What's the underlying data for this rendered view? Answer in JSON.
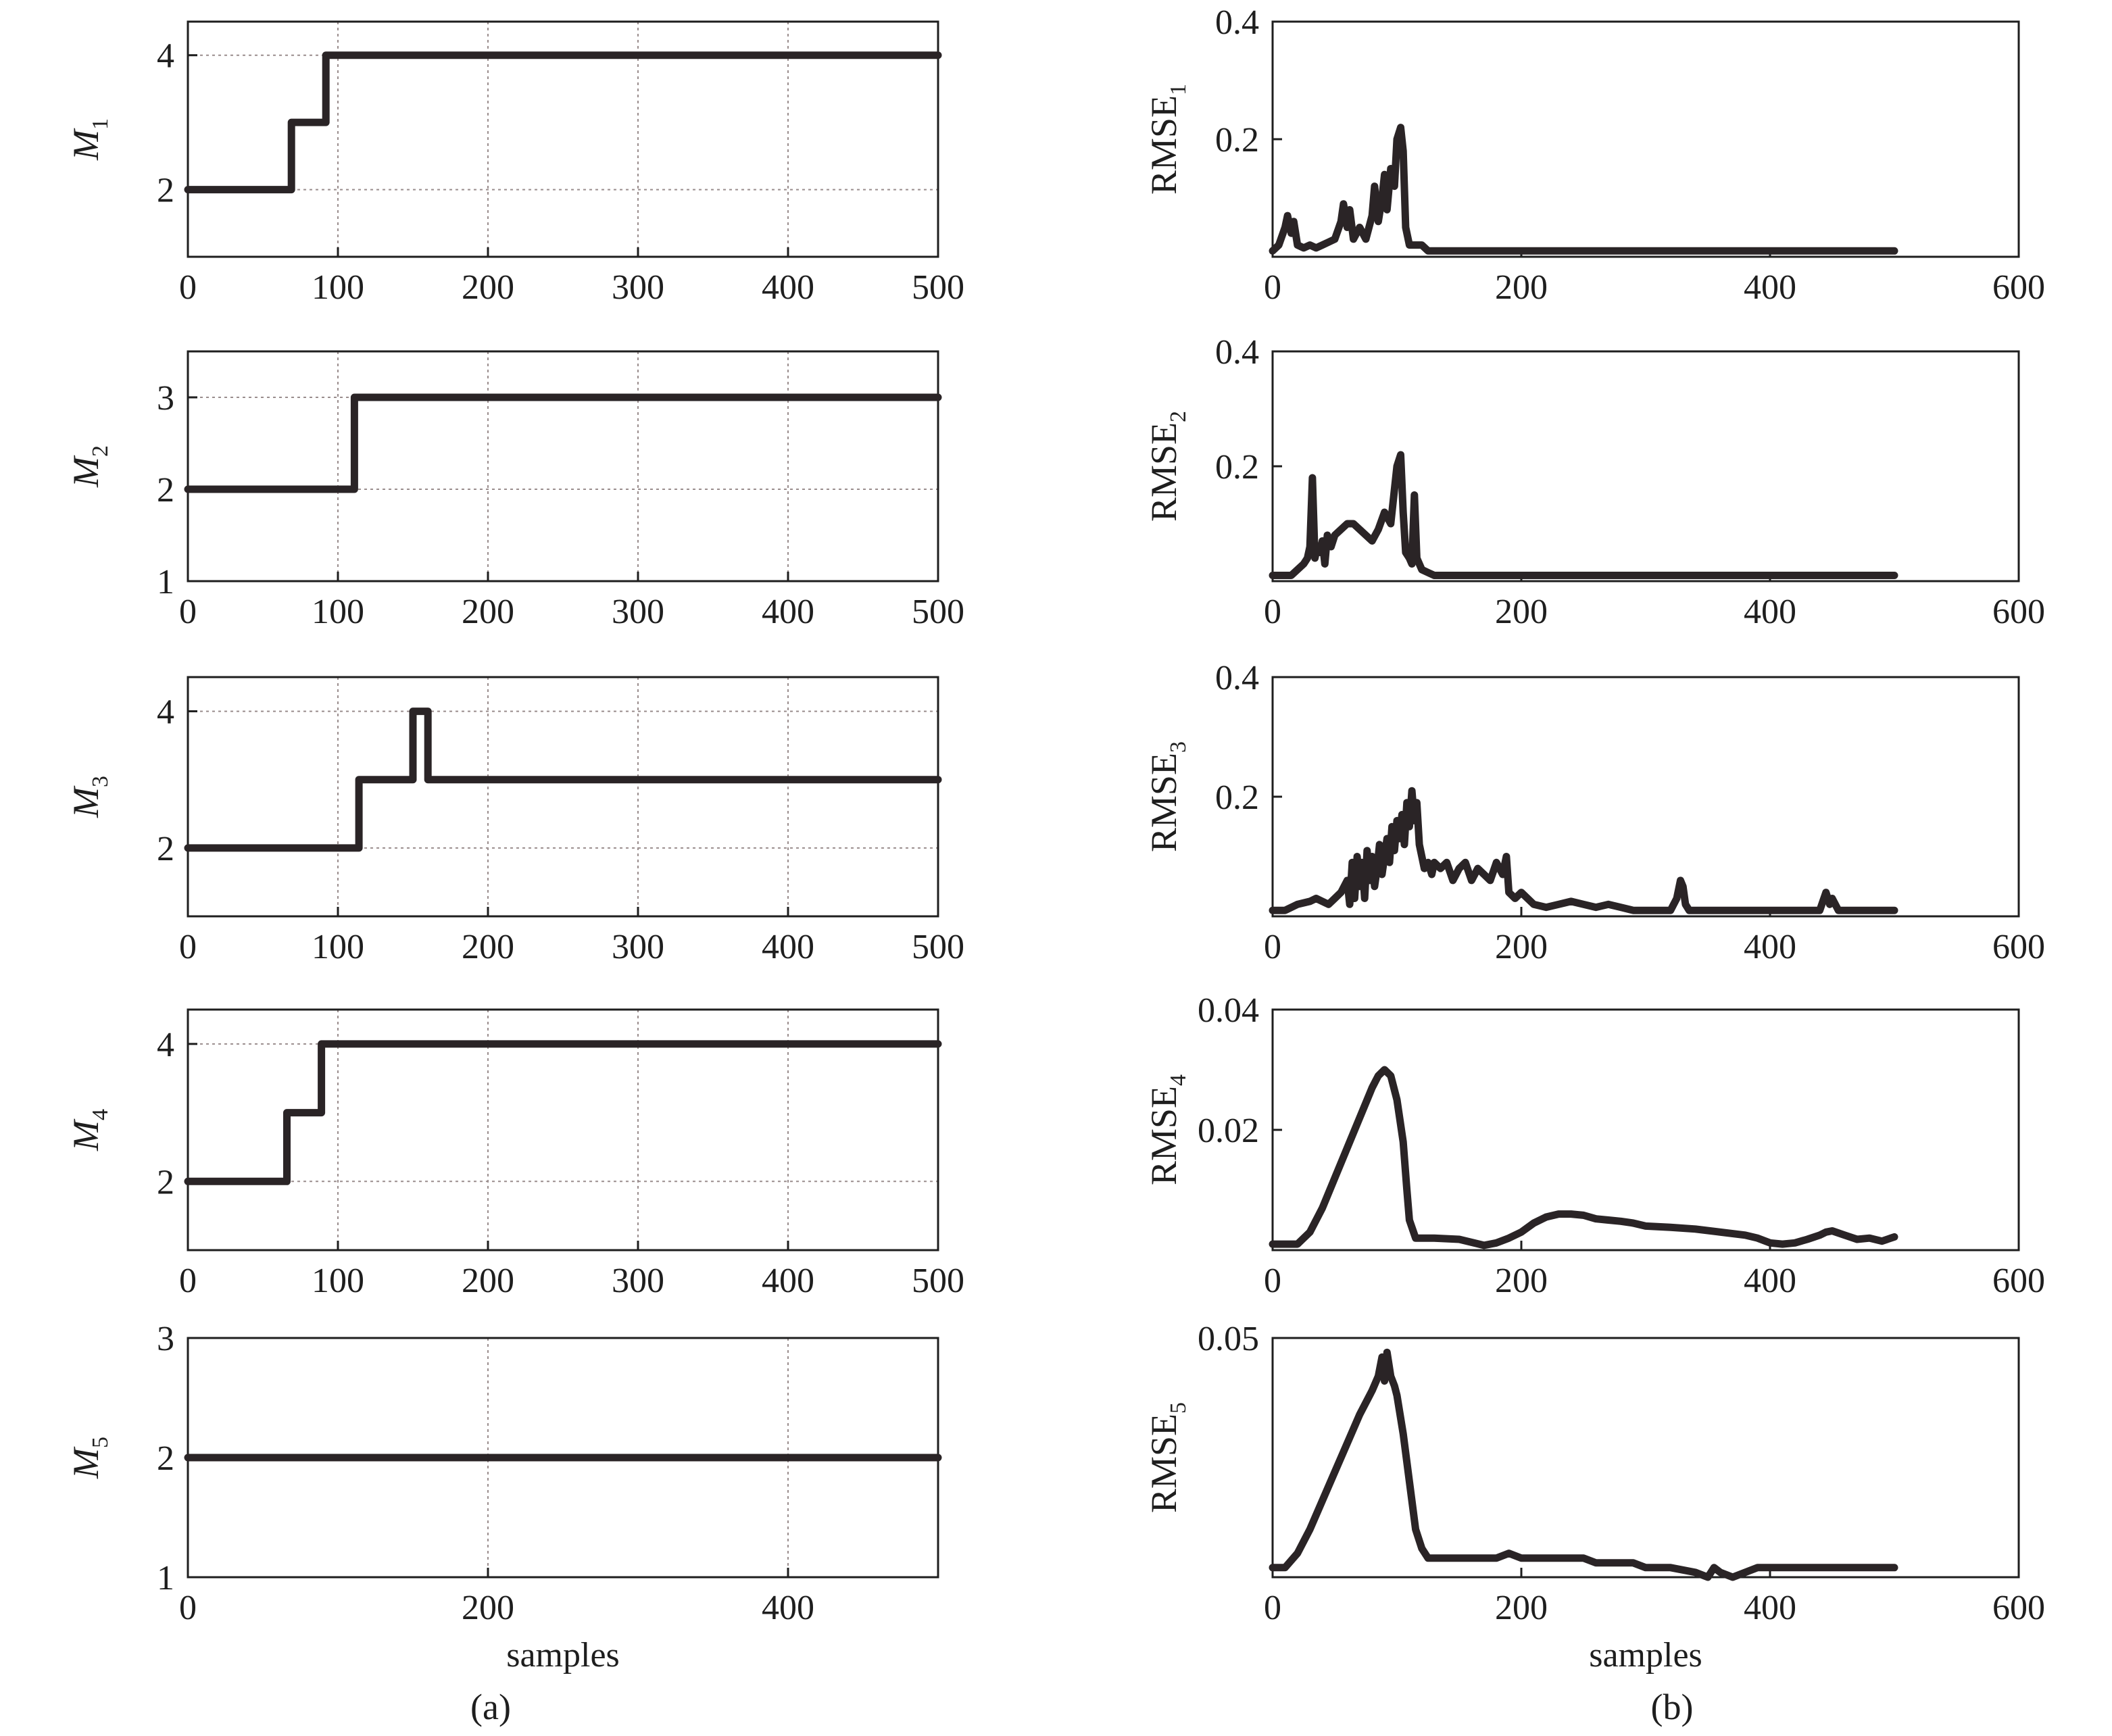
{
  "chart_data": [
    {
      "id": "M1",
      "type": "line",
      "panel": "(a)",
      "ylabel": {
        "base": "M",
        "sub": "1",
        "italic": true
      },
      "xlim": [
        0,
        500
      ],
      "ylim": [
        1,
        4.5
      ],
      "xticks": [
        0,
        100,
        200,
        300,
        400,
        500
      ],
      "yticks": [
        2,
        4
      ],
      "xgrid": [
        100,
        200,
        300,
        400
      ],
      "ygrid": [
        2,
        4
      ],
      "series": [
        {
          "x": [
            0,
            69,
            69,
            92,
            92,
            500
          ],
          "y": [
            2,
            2,
            3,
            3,
            4,
            4
          ]
        }
      ]
    },
    {
      "id": "M2",
      "type": "line",
      "panel": "(a)",
      "ylabel": {
        "base": "M",
        "sub": "2",
        "italic": true
      },
      "xlim": [
        0,
        500
      ],
      "ylim": [
        1,
        3.5
      ],
      "xticks": [
        0,
        100,
        200,
        300,
        400,
        500
      ],
      "yticks": [
        1,
        2,
        3
      ],
      "xgrid": [
        100,
        200,
        300,
        400
      ],
      "ygrid": [
        2,
        3
      ],
      "series": [
        {
          "x": [
            0,
            111,
            111,
            500
          ],
          "y": [
            2,
            2,
            3,
            3
          ]
        }
      ]
    },
    {
      "id": "M3",
      "type": "line",
      "panel": "(a)",
      "ylabel": {
        "base": "M",
        "sub": "3",
        "italic": true
      },
      "xlim": [
        0,
        500
      ],
      "ylim": [
        1,
        4.5
      ],
      "xticks": [
        0,
        100,
        200,
        300,
        400,
        500
      ],
      "yticks": [
        2,
        4
      ],
      "xgrid": [
        100,
        200,
        300,
        400
      ],
      "ygrid": [
        2,
        4
      ],
      "series": [
        {
          "x": [
            0,
            114,
            114,
            150,
            150,
            160,
            160,
            500
          ],
          "y": [
            2,
            2,
            3,
            3,
            4,
            4,
            3,
            3
          ]
        }
      ]
    },
    {
      "id": "M4",
      "type": "line",
      "panel": "(a)",
      "ylabel": {
        "base": "M",
        "sub": "4",
        "italic": true
      },
      "xlim": [
        0,
        500
      ],
      "ylim": [
        1,
        4.5
      ],
      "xticks": [
        0,
        100,
        200,
        300,
        400,
        500
      ],
      "yticks": [
        2,
        4
      ],
      "xgrid": [
        100,
        200,
        300,
        400
      ],
      "ygrid": [
        2,
        4
      ],
      "series": [
        {
          "x": [
            0,
            66,
            66,
            89,
            89,
            500
          ],
          "y": [
            2,
            2,
            3,
            3,
            4,
            4
          ]
        }
      ]
    },
    {
      "id": "M5",
      "type": "line",
      "panel": "(a)",
      "ylabel": {
        "base": "M",
        "sub": "5",
        "italic": true
      },
      "xlabel": "samples",
      "xlim": [
        0,
        500
      ],
      "ylim": [
        1,
        3
      ],
      "xticks": [
        0,
        200,
        400
      ],
      "yticks": [
        1,
        2,
        3
      ],
      "xgrid": [
        200,
        400
      ],
      "ygrid": [
        2
      ],
      "series": [
        {
          "x": [
            0,
            500
          ],
          "y": [
            2,
            2
          ]
        }
      ]
    },
    {
      "id": "RMSE1",
      "type": "line",
      "panel": "(b)",
      "ylabel": {
        "base": "RMSE",
        "sub": "1",
        "italic": false
      },
      "xlim": [
        0,
        600
      ],
      "ylim": [
        0,
        0.4
      ],
      "xticks": [
        0,
        200,
        400,
        600
      ],
      "yticks": [
        0.2,
        0.4
      ],
      "series": [
        {
          "x": [
            0,
            5,
            10,
            12,
            15,
            17,
            20,
            25,
            30,
            35,
            40,
            45,
            50,
            55,
            57,
            60,
            62,
            65,
            70,
            75,
            80,
            82,
            85,
            88,
            90,
            92,
            95,
            98,
            100,
            103,
            105,
            107,
            110,
            115,
            120,
            125,
            130,
            140,
            200,
            300,
            400,
            500
          ],
          "y": [
            0.01,
            0.02,
            0.05,
            0.07,
            0.04,
            0.06,
            0.02,
            0.015,
            0.02,
            0.015,
            0.02,
            0.025,
            0.03,
            0.06,
            0.09,
            0.05,
            0.08,
            0.03,
            0.05,
            0.03,
            0.07,
            0.12,
            0.06,
            0.1,
            0.14,
            0.08,
            0.15,
            0.12,
            0.2,
            0.22,
            0.18,
            0.05,
            0.02,
            0.02,
            0.02,
            0.01,
            0.01,
            0.01,
            0.01,
            0.01,
            0.01,
            0.01
          ]
        }
      ]
    },
    {
      "id": "RMSE2",
      "type": "line",
      "panel": "(b)",
      "ylabel": {
        "base": "RMSE",
        "sub": "2",
        "italic": false
      },
      "xlim": [
        0,
        600
      ],
      "ylim": [
        0,
        0.4
      ],
      "xticks": [
        0,
        200,
        400,
        600
      ],
      "yticks": [
        0.2,
        0.4
      ],
      "series": [
        {
          "x": [
            0,
            10,
            15,
            20,
            25,
            28,
            30,
            32,
            34,
            36,
            38,
            40,
            42,
            44,
            47,
            50,
            55,
            60,
            65,
            70,
            75,
            80,
            85,
            90,
            95,
            100,
            103,
            105,
            107,
            110,
            112,
            114,
            116,
            118,
            120,
            125,
            130,
            140,
            200,
            300,
            400,
            500
          ],
          "y": [
            0.01,
            0.01,
            0.01,
            0.02,
            0.03,
            0.04,
            0.06,
            0.18,
            0.04,
            0.06,
            0.05,
            0.07,
            0.03,
            0.08,
            0.06,
            0.08,
            0.09,
            0.1,
            0.1,
            0.09,
            0.08,
            0.07,
            0.09,
            0.12,
            0.1,
            0.2,
            0.22,
            0.12,
            0.05,
            0.04,
            0.03,
            0.15,
            0.04,
            0.03,
            0.02,
            0.015,
            0.01,
            0.01,
            0.01,
            0.01,
            0.01,
            0.01
          ]
        }
      ]
    },
    {
      "id": "RMSE3",
      "type": "line",
      "panel": "(b)",
      "ylabel": {
        "base": "RMSE",
        "sub": "3",
        "italic": false
      },
      "xlim": [
        0,
        600
      ],
      "ylim": [
        0,
        0.4
      ],
      "xticks": [
        0,
        200,
        400,
        600
      ],
      "yticks": [
        0.2,
        0.4
      ],
      "series": [
        {
          "x": [
            0,
            10,
            20,
            30,
            35,
            40,
            45,
            50,
            55,
            60,
            62,
            64,
            66,
            68,
            70,
            72,
            74,
            76,
            78,
            80,
            82,
            84,
            86,
            88,
            90,
            92,
            94,
            96,
            98,
            100,
            102,
            104,
            106,
            108,
            110,
            112,
            114,
            116,
            118,
            120,
            122,
            125,
            128,
            130,
            135,
            140,
            145,
            150,
            155,
            160,
            165,
            170,
            175,
            180,
            185,
            188,
            190,
            195,
            200,
            210,
            220,
            230,
            240,
            250,
            260,
            270,
            280,
            290,
            300,
            310,
            320,
            325,
            328,
            330,
            332,
            335,
            340,
            350,
            360,
            380,
            400,
            420,
            430,
            440,
            445,
            448,
            450,
            455,
            460,
            480,
            500
          ],
          "y": [
            0.01,
            0.01,
            0.02,
            0.025,
            0.03,
            0.025,
            0.02,
            0.03,
            0.04,
            0.06,
            0.02,
            0.09,
            0.03,
            0.1,
            0.05,
            0.09,
            0.03,
            0.11,
            0.06,
            0.1,
            0.05,
            0.08,
            0.12,
            0.07,
            0.1,
            0.13,
            0.09,
            0.15,
            0.11,
            0.16,
            0.13,
            0.17,
            0.12,
            0.19,
            0.15,
            0.21,
            0.16,
            0.19,
            0.12,
            0.1,
            0.08,
            0.09,
            0.07,
            0.09,
            0.08,
            0.09,
            0.06,
            0.08,
            0.09,
            0.06,
            0.08,
            0.07,
            0.06,
            0.09,
            0.07,
            0.1,
            0.04,
            0.03,
            0.04,
            0.02,
            0.015,
            0.02,
            0.025,
            0.02,
            0.015,
            0.02,
            0.015,
            0.01,
            0.01,
            0.01,
            0.01,
            0.03,
            0.06,
            0.05,
            0.02,
            0.01,
            0.01,
            0.01,
            0.01,
            0.01,
            0.01,
            0.01,
            0.01,
            0.01,
            0.04,
            0.02,
            0.03,
            0.01,
            0.01,
            0.01,
            0.01
          ]
        }
      ]
    },
    {
      "id": "RMSE4",
      "type": "line",
      "panel": "(b)",
      "ylabel": {
        "base": "RMSE",
        "sub": "4",
        "italic": false
      },
      "xlim": [
        0,
        600
      ],
      "ylim": [
        0,
        0.04
      ],
      "xticks": [
        0,
        200,
        400,
        600
      ],
      "yticks": [
        0.02,
        0.04
      ],
      "series": [
        {
          "x": [
            0,
            20,
            30,
            40,
            50,
            60,
            70,
            80,
            85,
            90,
            95,
            100,
            105,
            108,
            110,
            115,
            120,
            130,
            150,
            170,
            180,
            190,
            200,
            210,
            220,
            230,
            240,
            250,
            260,
            270,
            280,
            290,
            300,
            320,
            340,
            360,
            380,
            390,
            400,
            410,
            420,
            430,
            440,
            445,
            450,
            460,
            470,
            480,
            490,
            500
          ],
          "y": [
            0.001,
            0.001,
            0.003,
            0.007,
            0.012,
            0.017,
            0.022,
            0.027,
            0.029,
            0.03,
            0.029,
            0.025,
            0.018,
            0.01,
            0.005,
            0.002,
            0.002,
            0.002,
            0.0018,
            0.0008,
            0.0012,
            0.002,
            0.003,
            0.0045,
            0.0055,
            0.006,
            0.006,
            0.0058,
            0.0052,
            0.005,
            0.0048,
            0.0045,
            0.004,
            0.0038,
            0.0035,
            0.003,
            0.0025,
            0.002,
            0.0012,
            0.001,
            0.0012,
            0.0018,
            0.0025,
            0.003,
            0.0032,
            0.0025,
            0.0018,
            0.002,
            0.0015,
            0.0022
          ]
        }
      ]
    },
    {
      "id": "RMSE5",
      "type": "line",
      "panel": "(b)",
      "ylabel": {
        "base": "RMSE",
        "sub": "5",
        "italic": false
      },
      "xlabel": "samples",
      "xlim": [
        0,
        600
      ],
      "ylim": [
        0,
        0.05
      ],
      "xticks": [
        0,
        200,
        400,
        600
      ],
      "yticks": [
        0.05
      ],
      "series": [
        {
          "x": [
            0,
            10,
            20,
            30,
            40,
            50,
            60,
            70,
            80,
            85,
            88,
            90,
            92,
            95,
            98,
            100,
            105,
            110,
            115,
            120,
            125,
            130,
            140,
            160,
            180,
            190,
            200,
            230,
            250,
            260,
            270,
            290,
            300,
            320,
            340,
            350,
            355,
            360,
            370,
            380,
            390,
            400,
            420,
            440,
            460,
            480,
            500
          ],
          "y": [
            0.002,
            0.002,
            0.005,
            0.01,
            0.016,
            0.022,
            0.028,
            0.034,
            0.039,
            0.042,
            0.046,
            0.041,
            0.047,
            0.042,
            0.04,
            0.038,
            0.03,
            0.02,
            0.01,
            0.006,
            0.004,
            0.004,
            0.004,
            0.004,
            0.004,
            0.005,
            0.004,
            0.004,
            0.004,
            0.003,
            0.003,
            0.003,
            0.002,
            0.002,
            0.001,
            0.0,
            0.002,
            0.001,
            0.0,
            0.001,
            0.002,
            0.002,
            0.002,
            0.002,
            0.002,
            0.002,
            0.002
          ]
        }
      ]
    }
  ],
  "captions": {
    "a": "(a)",
    "b": "(b)"
  },
  "colors": {
    "line": "#2a2426",
    "frame": "#1e1e1e",
    "grid": "#9a8d8d"
  }
}
